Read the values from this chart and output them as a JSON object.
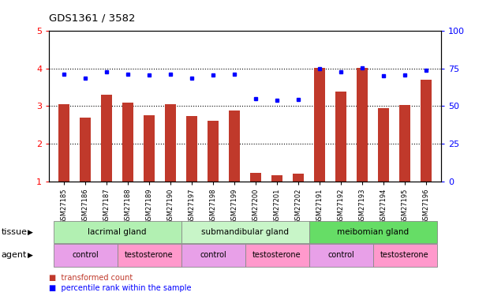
{
  "title": "GDS1361 / 3582",
  "samples": [
    "GSM27185",
    "GSM27186",
    "GSM27187",
    "GSM27188",
    "GSM27189",
    "GSM27190",
    "GSM27197",
    "GSM27198",
    "GSM27199",
    "GSM27200",
    "GSM27201",
    "GSM27202",
    "GSM27191",
    "GSM27192",
    "GSM27193",
    "GSM27194",
    "GSM27195",
    "GSM27196"
  ],
  "bar_values": [
    3.05,
    2.7,
    3.3,
    3.1,
    2.75,
    3.05,
    2.73,
    2.6,
    2.88,
    1.22,
    1.15,
    1.2,
    4.02,
    3.38,
    4.02,
    2.95,
    3.02,
    3.7
  ],
  "dot_values": [
    3.85,
    3.75,
    3.92,
    3.85,
    3.82,
    3.85,
    3.75,
    3.82,
    3.85,
    3.2,
    3.15,
    3.18,
    4.0,
    3.92,
    4.02,
    3.8,
    3.82,
    3.95
  ],
  "bar_color": "#C0392B",
  "dot_color": "#0000FF",
  "ylim_left": [
    1,
    5
  ],
  "ylim_right": [
    0,
    100
  ],
  "yticks_left": [
    1,
    2,
    3,
    4,
    5
  ],
  "yticks_right": [
    0,
    25,
    50,
    75,
    100
  ],
  "tissue_groups": [
    {
      "label": "lacrimal gland",
      "start": 0,
      "end": 5,
      "color": "#B2F0B2"
    },
    {
      "label": "submandibular gland",
      "start": 6,
      "end": 11,
      "color": "#C8F5C8"
    },
    {
      "label": "meibomian gland",
      "start": 12,
      "end": 17,
      "color": "#66DD66"
    }
  ],
  "agent_groups": [
    {
      "label": "control",
      "start": 0,
      "end": 2,
      "color": "#E8A0E8"
    },
    {
      "label": "testosterone",
      "start": 3,
      "end": 5,
      "color": "#FF99CC"
    },
    {
      "label": "control",
      "start": 6,
      "end": 8,
      "color": "#E8A0E8"
    },
    {
      "label": "testosterone",
      "start": 9,
      "end": 11,
      "color": "#FF99CC"
    },
    {
      "label": "control",
      "start": 12,
      "end": 14,
      "color": "#E8A0E8"
    },
    {
      "label": "testosterone",
      "start": 15,
      "end": 17,
      "color": "#FF99CC"
    }
  ],
  "legend_items": [
    {
      "label": "transformed count",
      "color": "#C0392B"
    },
    {
      "label": "percentile rank within the sample",
      "color": "#0000FF"
    }
  ]
}
